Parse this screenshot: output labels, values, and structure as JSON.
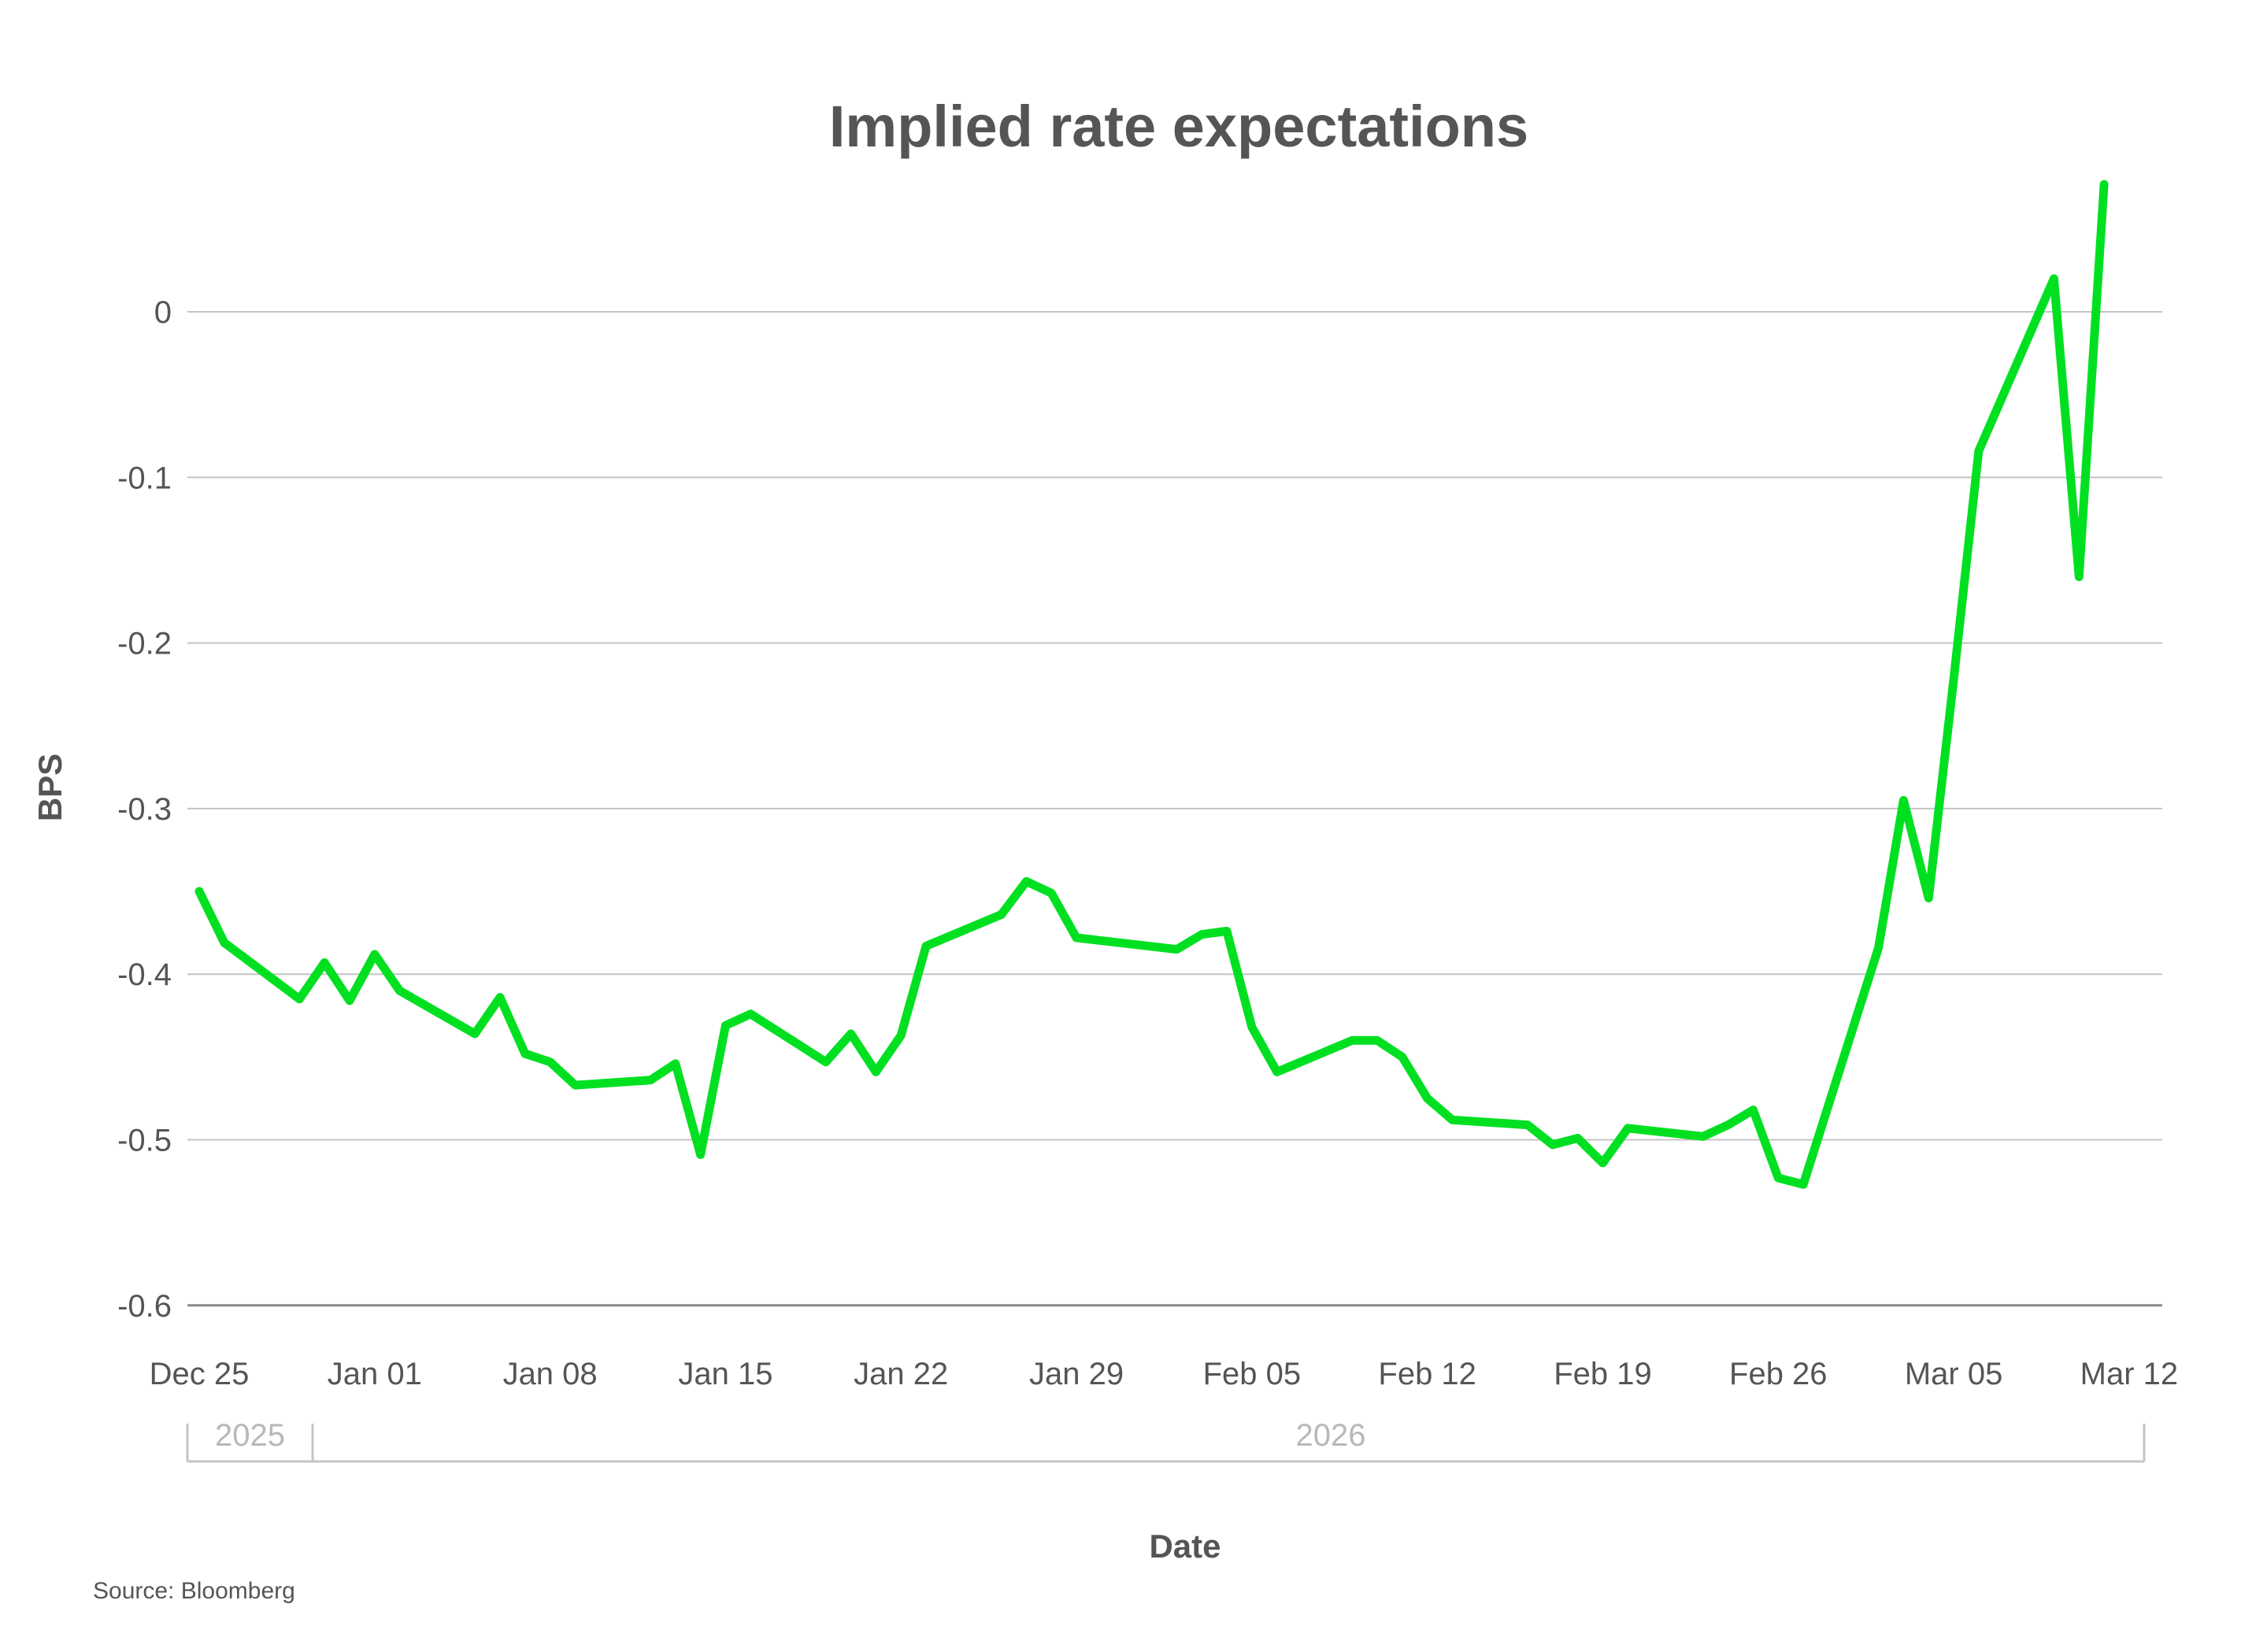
{
  "chart_data": {
    "type": "line",
    "title": "Implied rate expectations",
    "xlabel": "Date",
    "ylabel": "BPS",
    "source": "Source: Bloomberg",
    "ylim": [
      -0.6,
      0.08
    ],
    "y_ticks": [
      0,
      -0.1,
      -0.2,
      -0.3,
      -0.4,
      -0.5,
      -0.6
    ],
    "y_tick_labels": [
      "0",
      "-0.1",
      "-0.2",
      "-0.3",
      "-0.4",
      "-0.5",
      "-0.6"
    ],
    "x_tick_labels": [
      "Dec 25",
      "Jan 01",
      "Jan 08",
      "Jan 15",
      "Jan 22",
      "Jan 29",
      "Feb 05",
      "Feb 12",
      "Feb 19",
      "Feb 26",
      "Mar 05",
      "Mar 12"
    ],
    "x_tick_day_offsets": [
      0,
      7,
      14,
      21,
      28,
      35,
      42,
      49,
      56,
      63,
      70,
      77
    ],
    "year_groups": [
      {
        "label": "2025",
        "start_day": -0.5,
        "end_day": 4.5
      },
      {
        "label": "2026",
        "start_day": 4.5,
        "end_day": 77.6
      }
    ],
    "grid": true,
    "legend": null,
    "line_color": "#00e021",
    "series": [
      {
        "name": "Implied rate expectations",
        "x": [
          "Dec 25",
          "Dec 26",
          "Dec 29",
          "Dec 30",
          "Dec 31",
          "Jan 01",
          "Jan 02",
          "Jan 05",
          "Jan 06",
          "Jan 07",
          "Jan 08",
          "Jan 09",
          "Jan 12",
          "Jan 13",
          "Jan 14",
          "Jan 15",
          "Jan 16",
          "Jan 19",
          "Jan 20",
          "Jan 21",
          "Jan 22",
          "Jan 23",
          "Jan 26",
          "Jan 27",
          "Jan 28",
          "Jan 29",
          "Feb 02",
          "Feb 03",
          "Feb 04",
          "Feb 05",
          "Feb 06",
          "Feb 09",
          "Feb 10",
          "Feb 11",
          "Feb 12",
          "Feb 13",
          "Feb 16",
          "Feb 17",
          "Feb 18",
          "Feb 19",
          "Feb 20",
          "Feb 23",
          "Feb 24",
          "Feb 25",
          "Feb 26",
          "Feb 27",
          "Mar 02",
          "Mar 03",
          "Mar 04",
          "Mar 05",
          "Mar 06",
          "Mar 09",
          "Mar 10",
          "Mar 11"
        ],
        "day_offsets": [
          0,
          1,
          4,
          5,
          6,
          7,
          8,
          11,
          12,
          13,
          14,
          15,
          18,
          19,
          20,
          21,
          22,
          25,
          26,
          27,
          28,
          29,
          32,
          33,
          34,
          35,
          39,
          40,
          41,
          42,
          43,
          46,
          47,
          48,
          49,
          50,
          53,
          54,
          55,
          56,
          57,
          60,
          61,
          62,
          63,
          64,
          67,
          68,
          69,
          70,
          71,
          74,
          75,
          76
        ],
        "values": [
          -0.35,
          -0.381,
          -0.415,
          -0.393,
          -0.416,
          -0.388,
          -0.41,
          -0.436,
          -0.414,
          -0.448,
          -0.453,
          -0.467,
          -0.464,
          -0.454,
          -0.509,
          -0.431,
          -0.424,
          -0.453,
          -0.436,
          -0.459,
          -0.437,
          -0.383,
          -0.364,
          -0.344,
          -0.351,
          -0.378,
          -0.385,
          -0.376,
          -0.374,
          -0.432,
          -0.459,
          -0.44,
          -0.44,
          -0.45,
          -0.475,
          -0.488,
          -0.491,
          -0.503,
          -0.499,
          -0.514,
          -0.493,
          -0.498,
          -0.491,
          -0.482,
          -0.523,
          -0.527,
          -0.384,
          -0.295,
          -0.354,
          -0.222,
          -0.084,
          0.02,
          -0.16,
          0.077
        ]
      }
    ]
  }
}
